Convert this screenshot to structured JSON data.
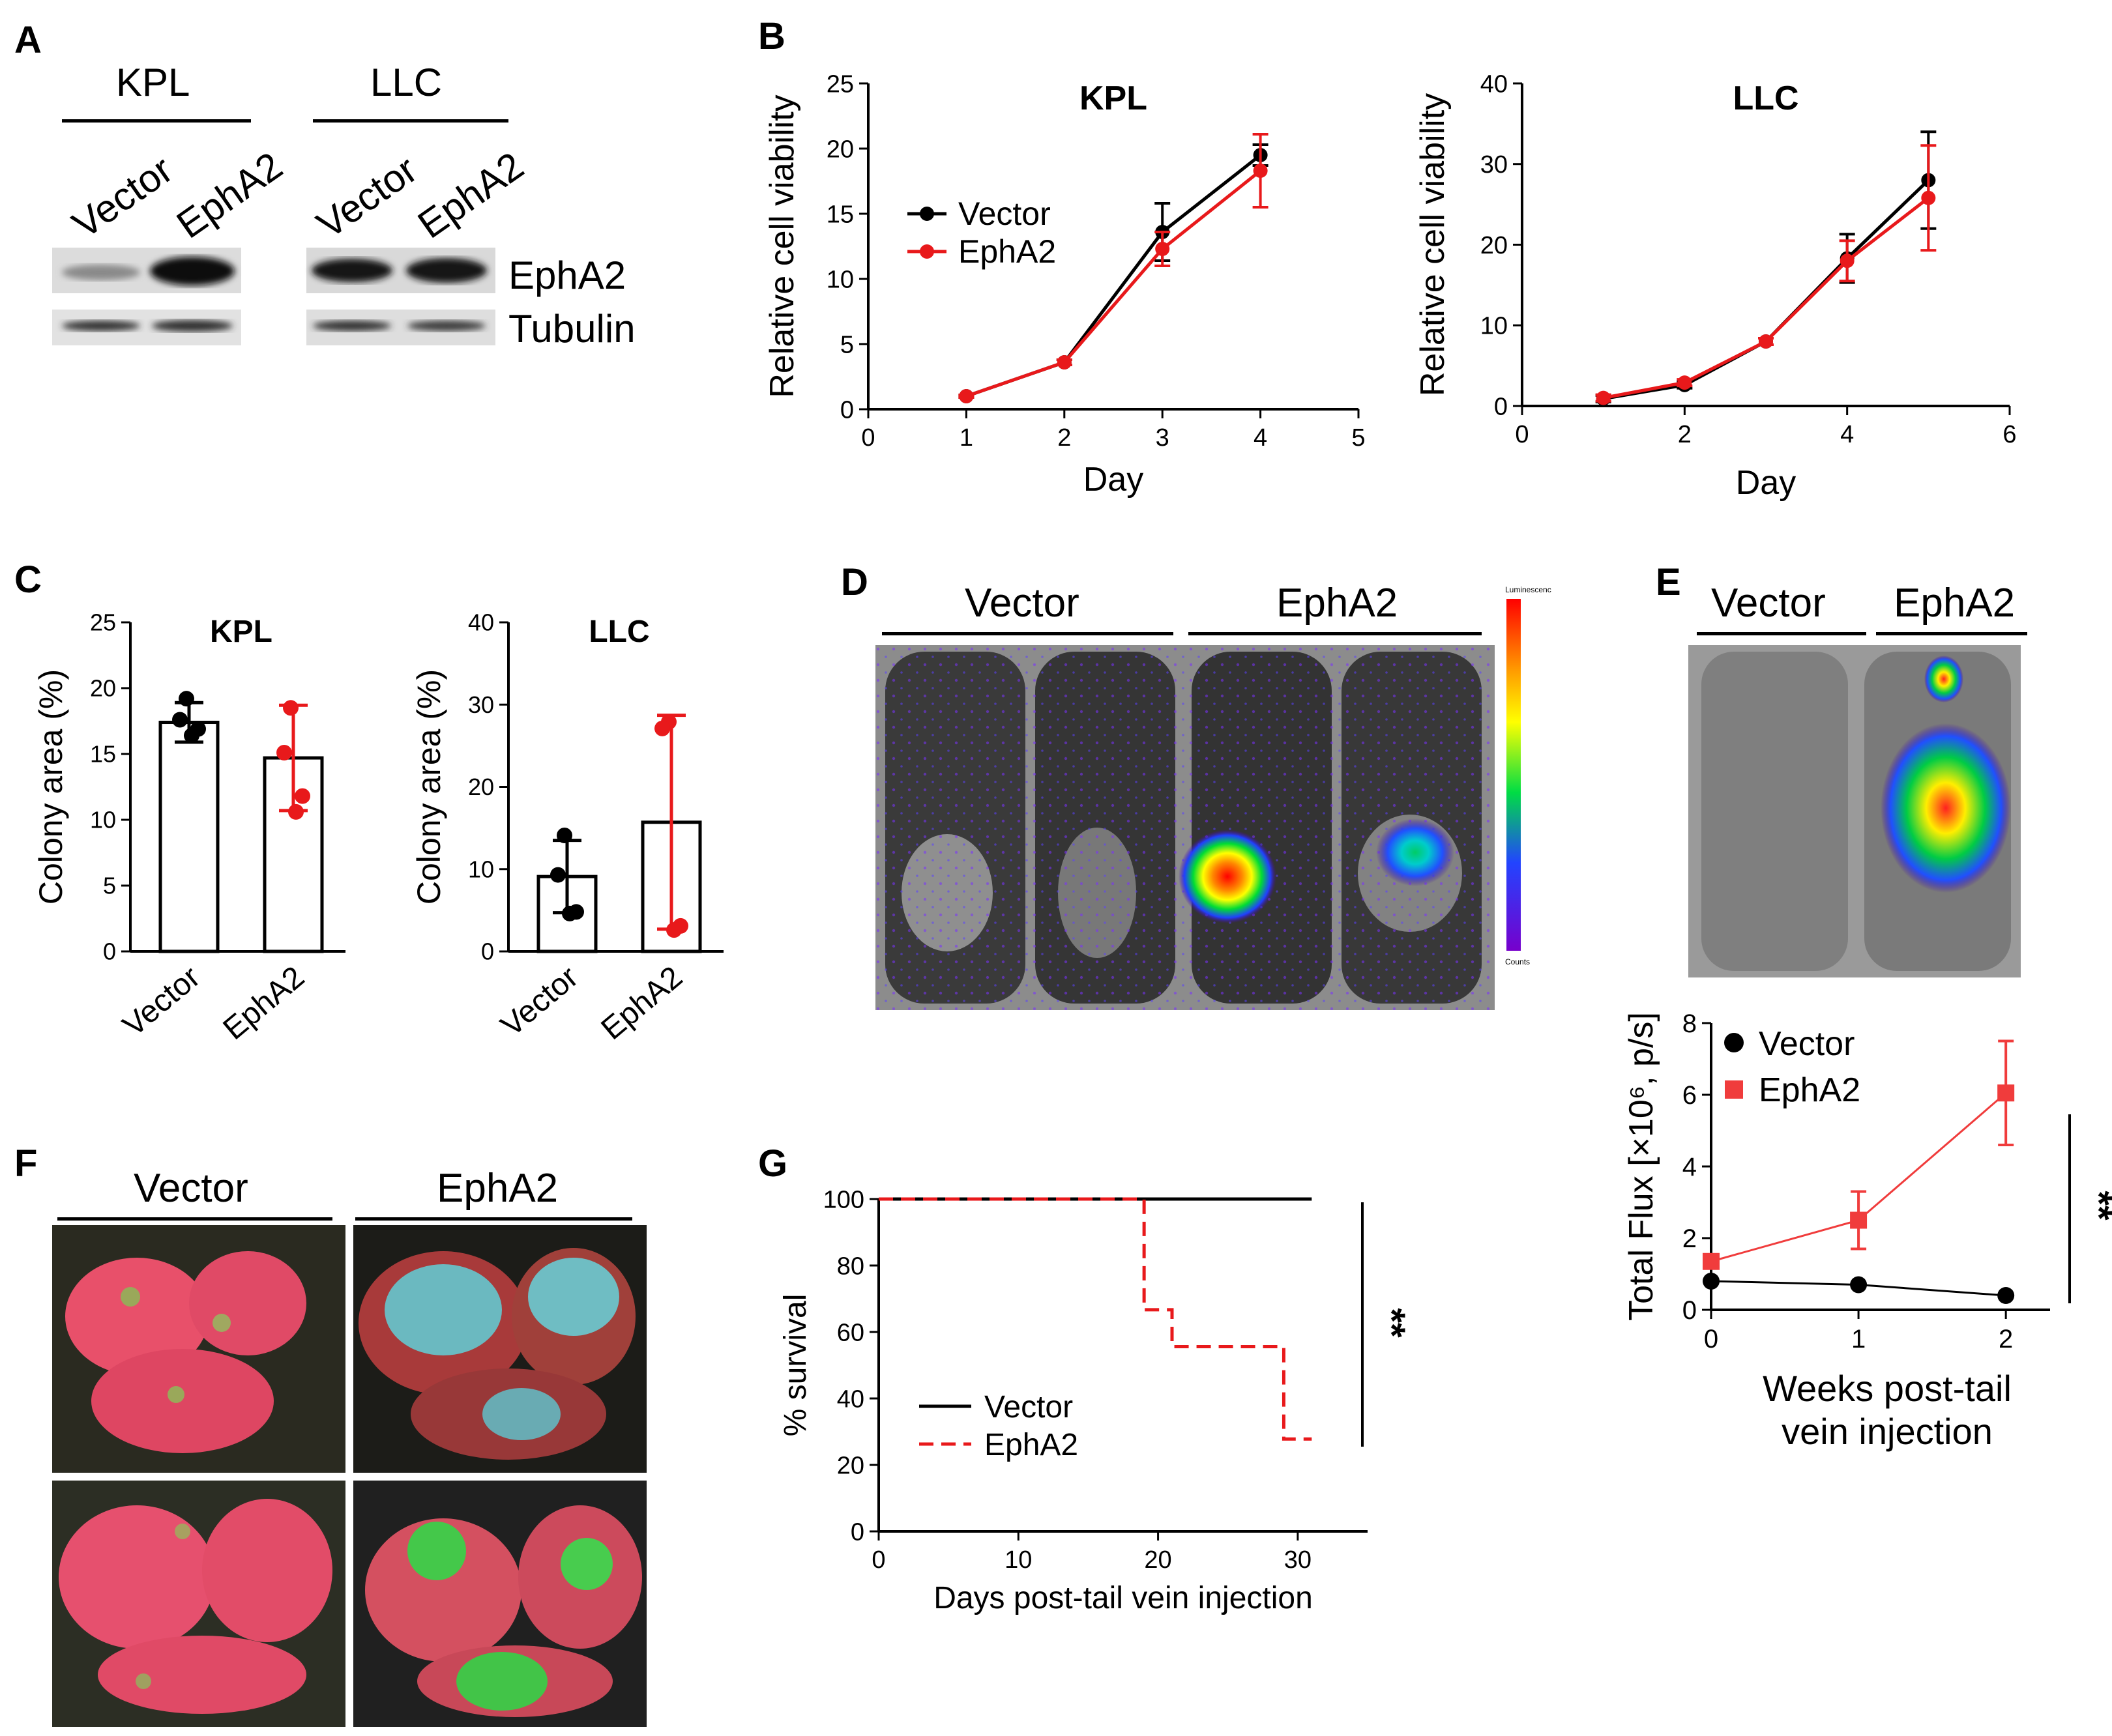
{
  "panels": {
    "a": "A",
    "b": "B",
    "c": "C",
    "d": "D",
    "e": "E",
    "f": "F",
    "g": "G"
  },
  "blot": {
    "groups": [
      "KPL",
      "LLC"
    ],
    "lanes": [
      "Vector",
      "EphA2"
    ],
    "proteins": [
      "EphA2",
      "Tubulin"
    ]
  },
  "imaging": {
    "d_groups": [
      "Vector",
      "EphA2"
    ],
    "d_scale_top": "Luminescence",
    "d_scale_bottom": "Counts",
    "e_groups": [
      "Vector",
      "EphA2"
    ],
    "f_groups": [
      "Vector",
      "EphA2"
    ]
  },
  "colors": {
    "black": "#000000",
    "red": "#e8191b",
    "red_light": "#f03c3c"
  },
  "chart_data": [
    {
      "id": "b_kpl",
      "type": "line",
      "title": "KPL",
      "xlabel": "Day",
      "ylabel": "Relative cell viability",
      "xlim": [
        0,
        5
      ],
      "ylim": [
        0,
        25
      ],
      "xticks": [
        "0",
        "1",
        "2",
        "3",
        "4",
        "5"
      ],
      "yticks": [
        "0",
        "5",
        "10",
        "15",
        "20",
        "25"
      ],
      "legend": "upper-left",
      "series": [
        {
          "name": "Vector",
          "color": "#000000",
          "x": [
            1,
            2,
            3,
            4
          ],
          "y": [
            1.0,
            3.6,
            13.6,
            19.5
          ],
          "err": [
            0.1,
            0.2,
            2.2,
            0.8
          ]
        },
        {
          "name": "EphA2",
          "color": "#e8191b",
          "x": [
            1,
            2,
            3,
            4
          ],
          "y": [
            1.0,
            3.6,
            12.3,
            18.3
          ],
          "err": [
            0.1,
            0.2,
            1.3,
            2.8
          ]
        }
      ]
    },
    {
      "id": "b_llc",
      "type": "line",
      "title": "LLC",
      "xlabel": "Day",
      "ylabel": "Relative cell viability",
      "xlim": [
        0,
        6
      ],
      "ylim": [
        0,
        40
      ],
      "xticks": [
        "0",
        "2",
        "4",
        "6"
      ],
      "yticks": [
        "0",
        "10",
        "20",
        "30",
        "40"
      ],
      "series": [
        {
          "name": "Vector",
          "color": "#000000",
          "x": [
            1,
            2,
            3,
            4,
            5
          ],
          "y": [
            0.9,
            2.6,
            8.0,
            18.3,
            28.0
          ],
          "err": [
            0.4,
            0.4,
            0.4,
            3.0,
            6.0
          ]
        },
        {
          "name": "EphA2",
          "color": "#e8191b",
          "x": [
            1,
            2,
            3,
            4,
            5
          ],
          "y": [
            1.0,
            2.9,
            8.0,
            18.0,
            25.8
          ],
          "err": [
            0.4,
            0.4,
            0.4,
            2.5,
            6.5
          ]
        }
      ]
    },
    {
      "id": "c_kpl",
      "type": "bar",
      "title": "KPL",
      "ylabel": "Colony area (%)",
      "ylim": [
        0,
        25
      ],
      "yticks": [
        "0",
        "5",
        "10",
        "15",
        "20",
        "25"
      ],
      "categories": [
        "Vector",
        "EphA2"
      ],
      "values": [
        17.4,
        14.7
      ],
      "err": [
        1.5,
        4.0
      ],
      "points": [
        [
          19.2,
          17.6,
          16.9,
          16.4
        ],
        [
          18.5,
          15.1,
          11.8,
          10.6
        ]
      ],
      "colors": [
        "#000000",
        "#e8191b"
      ]
    },
    {
      "id": "c_llc",
      "type": "bar",
      "title": "LLC",
      "ylabel": "Colony area (%)",
      "ylim": [
        0,
        40
      ],
      "yticks": [
        "0",
        "10",
        "20",
        "30",
        "40"
      ],
      "categories": [
        "Vector",
        "EphA2"
      ],
      "values": [
        9.1,
        15.7
      ],
      "err": [
        4.4,
        13.0
      ],
      "points": [
        [
          14.1,
          9.3,
          4.8,
          4.6
        ],
        [
          27.9,
          27.1,
          3.1,
          2.6
        ]
      ],
      "colors": [
        "#000000",
        "#e8191b"
      ]
    },
    {
      "id": "e_flux",
      "type": "line",
      "xlabel": "Weeks post-tail vein injection",
      "xlabel_lines": [
        "Weeks post-tail",
        "vein injection"
      ],
      "ylabel": "Total Flux [×10⁶, p/s]",
      "xlim": [
        0,
        2.3
      ],
      "ylim": [
        0,
        8
      ],
      "xticks": [
        "0",
        "1",
        "2"
      ],
      "yticks": [
        "0",
        "2",
        "4",
        "6",
        "8"
      ],
      "significance": "**",
      "series": [
        {
          "name": "Vector",
          "color": "#000000",
          "marker": "circle",
          "x": [
            0,
            1,
            2
          ],
          "y": [
            0.8,
            0.7,
            0.4
          ],
          "err": [
            0,
            0,
            0
          ]
        },
        {
          "name": "EphA2",
          "color": "#f03c3c",
          "marker": "square",
          "x": [
            0,
            1,
            2
          ],
          "y": [
            1.35,
            2.5,
            6.05
          ],
          "err": [
            0,
            0.8,
            1.45
          ]
        }
      ]
    },
    {
      "id": "g_survival",
      "type": "line",
      "xlabel": "Days post-tail vein injection",
      "ylabel": "% survival",
      "xlim": [
        0,
        35
      ],
      "ylim": [
        0,
        100
      ],
      "xticks": [
        "0",
        "10",
        "20",
        "30"
      ],
      "yticks": [
        "0",
        "20",
        "40",
        "60",
        "80",
        "100"
      ],
      "significance": "**",
      "series": [
        {
          "name": "Vector",
          "color": "#000000",
          "dash": false,
          "x": [
            0,
            31
          ],
          "y": [
            100,
            100
          ]
        },
        {
          "name": "EphA2",
          "color": "#e8191b",
          "dash": true,
          "x": [
            0,
            19,
            19,
            21,
            21,
            29,
            29,
            31
          ],
          "y": [
            100,
            100,
            66.7,
            66.7,
            55.6,
            55.6,
            27.8,
            27.8
          ]
        }
      ]
    }
  ]
}
